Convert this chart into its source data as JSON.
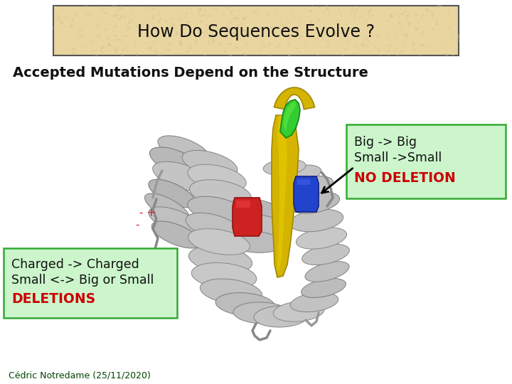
{
  "title": "How Do Sequences Evolve ?",
  "subtitle": "Accepted Mutations Depend on the Structure",
  "title_box_color": "#e8d5a0",
  "title_box_edge": "#555555",
  "right_box_bg": "#ccf5cc",
  "right_box_edge": "#33aa33",
  "left_box_bg": "#ccf5cc",
  "left_box_edge": "#33aa33",
  "right_box_lines": [
    "Big -> Big",
    "Small ->Small",
    "NO DELETION"
  ],
  "right_box_colors": [
    "#111111",
    "#111111",
    "#cc0000"
  ],
  "left_box_lines": [
    "Charged -> Charged",
    "Small <-> Big or Small",
    "DELETIONS"
  ],
  "left_box_colors": [
    "#111111",
    "#111111",
    "#cc0000"
  ],
  "charge_minus_plus": "- +",
  "charge_minus": "-",
  "footer": "Cédric Notredame (25/11/2020)",
  "bg_color": "#ffffff",
  "gray_helix": "#b0b0b0",
  "gray_dark": "#888888",
  "gray_light": "#d0d0d0",
  "yellow": "#d4b800",
  "green": "#22bb22",
  "blue": "#2244cc",
  "red": "#cc2222"
}
